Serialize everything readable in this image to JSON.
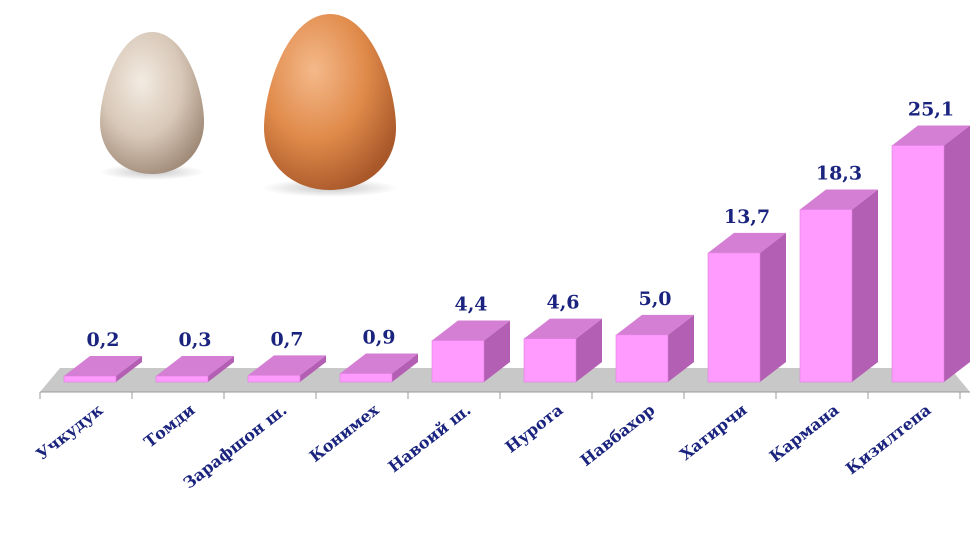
{
  "chart_data": {
    "type": "bar",
    "categories": [
      "Учкудук",
      "Томди",
      "Зарафшон ш.",
      "Конимех",
      "Навоий ш.",
      "Нурота",
      "Навбахор",
      "Хатирчи",
      "Кармана",
      "Қизилтепа"
    ],
    "values": [
      0.2,
      0.3,
      0.7,
      0.9,
      4.4,
      4.6,
      5.0,
      13.7,
      18.3,
      25.1
    ],
    "value_labels": [
      "0,2",
      "0,3",
      "0,7",
      "0,9",
      "4,4",
      "4,6",
      "5,0",
      "13,7",
      "18,3",
      "25,1"
    ],
    "ylim": [
      0,
      26
    ],
    "grid": false,
    "legend": "none"
  },
  "colors": {
    "bar_front": "#ff9bff",
    "bar_top": "#d47fd4",
    "bar_side": "#b35fb3",
    "floor": "#c8c8c8",
    "value_text": "#1a237e",
    "category_text": "#1a237e"
  },
  "decorations": {
    "left_image": "small-pale-egg-icon",
    "right_image": "large-brown-egg-icon"
  }
}
